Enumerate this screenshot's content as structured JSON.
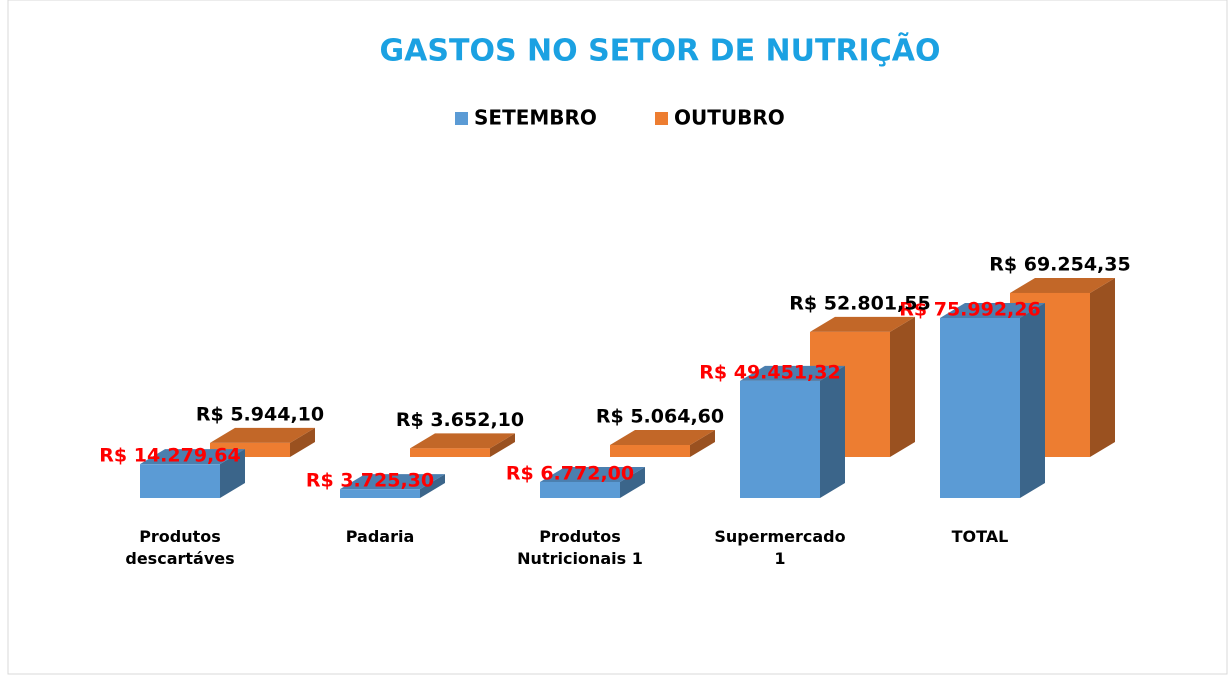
{
  "chart_data": {
    "type": "bar3d",
    "title": "GASTOS NO SETOR DE NUTRIÇÃO",
    "categories": [
      "Produtos descartáves",
      "Padaria",
      "Produtos Nutricionais 1",
      "Supermercado 1",
      "TOTAL"
    ],
    "series": [
      {
        "name": "SETEMBRO",
        "color": "#5b9bd5",
        "label_color": "#ff0000",
        "values": [
          14279.64,
          3725.3,
          6772.0,
          49451.32,
          75992.26
        ],
        "value_labels": [
          "R$ 14.279,64",
          "R$ 3.725,30",
          "R$ 6.772,00",
          "R$ 49.451,32",
          "R$ 75.992,26"
        ]
      },
      {
        "name": "OUTUBRO",
        "color": "#ed7d31",
        "label_color": "#000000",
        "values": [
          5944.1,
          3652.1,
          5064.6,
          52801.55,
          69254.35
        ],
        "value_labels": [
          "R$ 5.944,10",
          "R$ 3.652,10",
          "R$ 5.064,60",
          "R$ 52.801,55",
          "R$ 69.254,35"
        ]
      }
    ],
    "legend": "top"
  }
}
